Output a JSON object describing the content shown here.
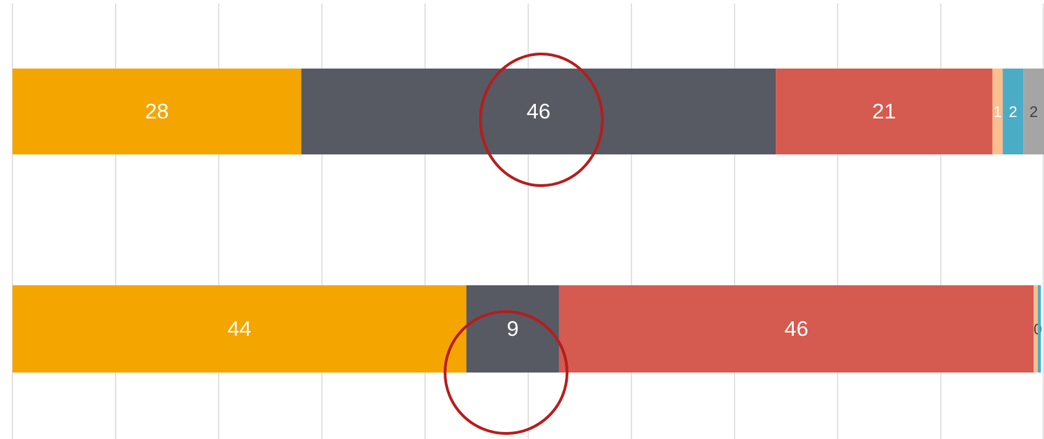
{
  "chart_data": {
    "type": "stacked_barh",
    "categories": [
      null,
      null
    ],
    "series": [
      {
        "color": "#F5A500",
        "values": [
          28,
          44
        ]
      },
      {
        "color": "#575A62",
        "values": [
          46,
          9
        ]
      },
      {
        "color": "#D55A50",
        "values": [
          21,
          46
        ]
      },
      {
        "color": "#FBBE8E",
        "values": [
          1,
          0.4
        ],
        "value_labels": [
          "1",
          "0"
        ]
      },
      {
        "color": "#4BACC6",
        "values": [
          2,
          0.3
        ],
        "value_labels": [
          "2",
          null
        ]
      },
      {
        "color": "#A5A5A5",
        "values": [
          2,
          0
        ]
      }
    ],
    "xlim": [
      0,
      100
    ],
    "xticks": [
      0,
      10,
      20,
      30,
      40,
      50,
      60,
      70,
      80,
      90,
      100
    ],
    "grid": true
  }
}
